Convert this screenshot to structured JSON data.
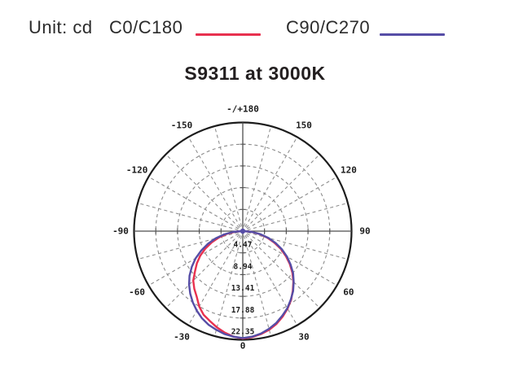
{
  "header": {
    "unit_label": "Unit: cd",
    "legend": [
      {
        "label": "C0/C180",
        "color": "#e8314f"
      },
      {
        "label": "C90/C270",
        "color": "#564da6"
      }
    ]
  },
  "title": "S9311 at 3000K",
  "chart_data": {
    "type": "line",
    "subtype": "polar-photometric-distribution",
    "title": "S9311 at 3000K",
    "unit": "cd",
    "rmax": 22.35,
    "ring_values": [
      4.47,
      8.94,
      13.41,
      17.88,
      22.35
    ],
    "grid_angle_step_deg": 15,
    "label_angle_step_deg": 30,
    "grid": "dashed",
    "angle_labels": [
      {
        "deg": 180,
        "text": "-/+180"
      },
      {
        "deg": -150,
        "text": "-150"
      },
      {
        "deg": 150,
        "text": "150"
      },
      {
        "deg": -120,
        "text": "-120"
      },
      {
        "deg": 120,
        "text": "120"
      },
      {
        "deg": -90,
        "text": "-90"
      },
      {
        "deg": 90,
        "text": "90"
      },
      {
        "deg": -60,
        "text": "-60"
      },
      {
        "deg": 60,
        "text": "60"
      },
      {
        "deg": -30,
        "text": "-30"
      },
      {
        "deg": 30,
        "text": "30"
      },
      {
        "deg": 0,
        "text": "0"
      }
    ],
    "angles_deg": [
      -90,
      -85,
      -80,
      -75,
      -70,
      -65,
      -60,
      -55,
      -50,
      -45,
      -40,
      -35,
      -30,
      -25,
      -20,
      -15,
      -10,
      -5,
      0,
      5,
      10,
      15,
      20,
      25,
      30,
      35,
      40,
      45,
      50,
      55,
      60,
      65,
      70,
      75,
      80,
      85,
      90
    ],
    "series": [
      {
        "name": "C0/C180",
        "color": "#e8314f",
        "values_cd": [
          0.25,
          1.6,
          3.4,
          5.1,
          6.8,
          8.5,
          10.1,
          11.5,
          12.8,
          14.4,
          15.5,
          16.5,
          17.9,
          19.0,
          19.7,
          20.5,
          21.2,
          21.8,
          22.1,
          21.9,
          21.5,
          21.0,
          20.3,
          19.4,
          18.4,
          17.3,
          16.0,
          14.7,
          13.3,
          11.8,
          10.2,
          8.6,
          6.9,
          5.2,
          3.5,
          1.8,
          0.3
        ]
      },
      {
        "name": "C90/C270",
        "color": "#564da6",
        "values_cd": [
          0.3,
          2.0,
          3.9,
          5.8,
          7.6,
          9.4,
          11.2,
          12.8,
          14.3,
          15.6,
          16.8,
          17.9,
          18.9,
          19.8,
          20.5,
          21.0,
          21.5,
          21.8,
          22.0,
          21.8,
          21.4,
          20.8,
          20.1,
          19.2,
          18.3,
          17.2,
          16.1,
          14.8,
          13.5,
          12.0,
          10.5,
          8.9,
          7.2,
          5.5,
          3.7,
          1.9,
          0.35
        ]
      }
    ]
  }
}
